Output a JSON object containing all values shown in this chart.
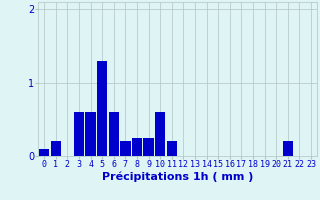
{
  "categories": [
    0,
    1,
    2,
    3,
    4,
    5,
    6,
    7,
    8,
    9,
    10,
    11,
    12,
    13,
    14,
    15,
    16,
    17,
    18,
    19,
    20,
    21,
    22,
    23
  ],
  "values": [
    0.1,
    0.2,
    0,
    0.6,
    0.6,
    1.3,
    0.6,
    0.2,
    0.25,
    0.25,
    0.6,
    0.2,
    0,
    0,
    0,
    0,
    0,
    0,
    0,
    0,
    0,
    0.2,
    0,
    0
  ],
  "bar_color": "#0000cc",
  "background_color": "#dff4f4",
  "grid_color": "#b0c4c4",
  "text_color": "#0000cc",
  "xlabel": "Précipitations 1h ( mm )",
  "ylim": [
    0,
    2.1
  ],
  "yticks": [
    0,
    1,
    2
  ],
  "xlabel_fontsize": 8,
  "tick_fontsize": 6
}
